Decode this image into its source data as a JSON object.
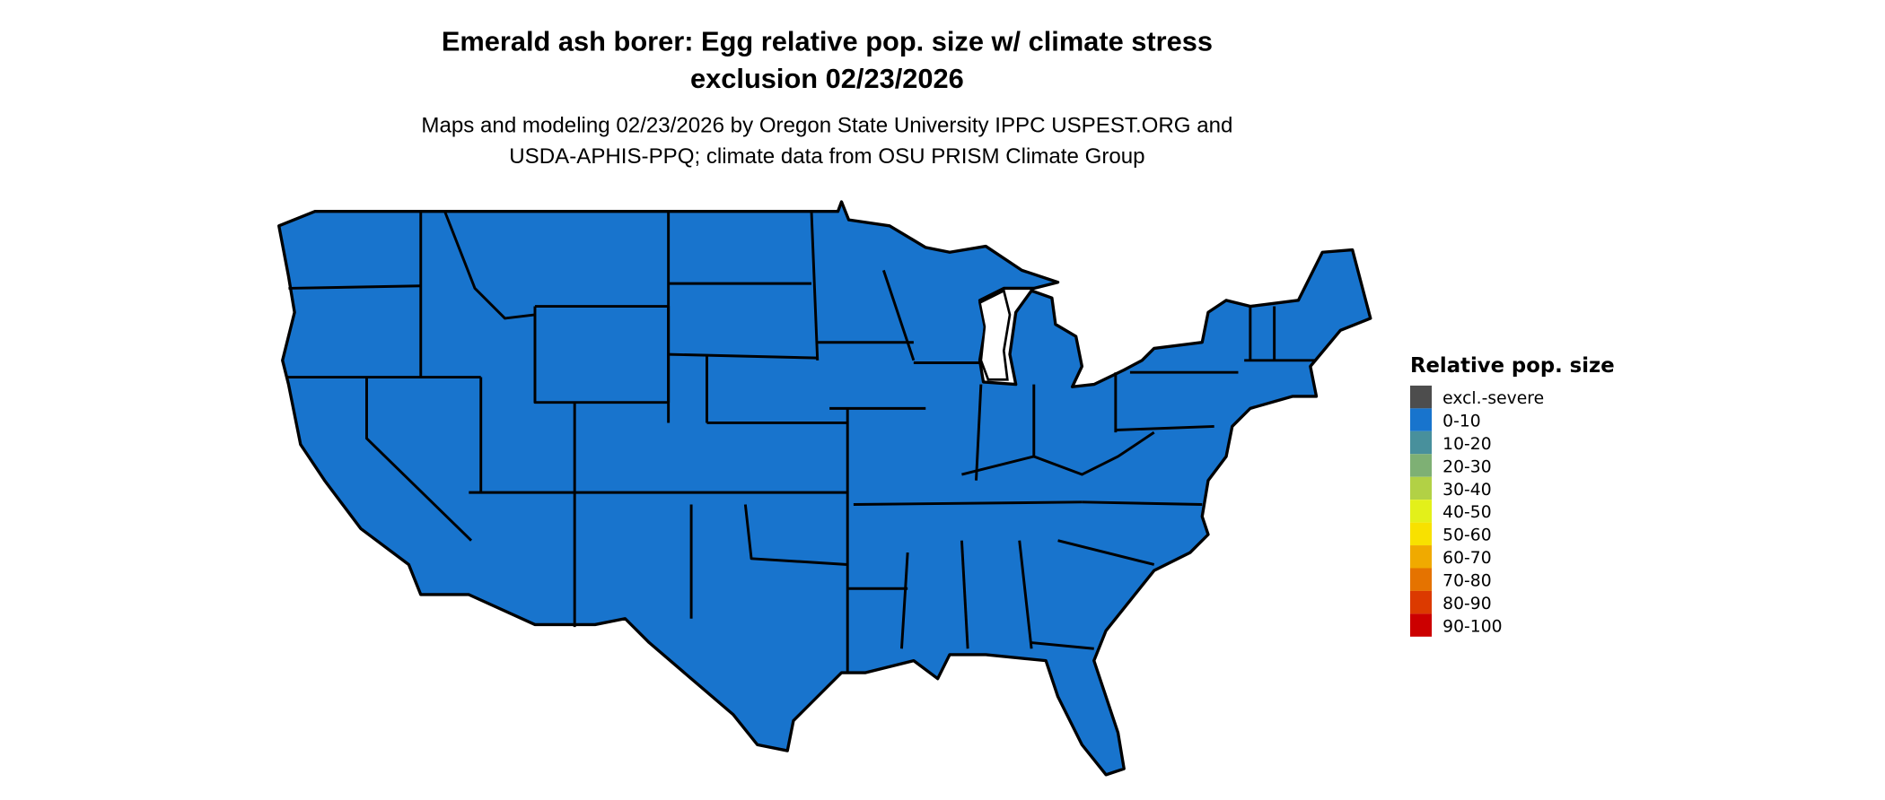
{
  "title_line1": "Emerald ash borer: Egg relative pop. size w/ climate stress",
  "title_line2": "exclusion 02/23/2026",
  "subtitle_line1": "Maps and modeling 02/23/2026 by Oregon State University IPPC USPEST.ORG and",
  "subtitle_line2": "USDA-APHIS-PPQ; climate data from OSU PRISM Climate Group",
  "map": {
    "region": "Contiguous United States",
    "dominant_class": "0-10",
    "fill_color": "#1874CD",
    "border_color": "#000000"
  },
  "legend": {
    "title": "Relative pop. size",
    "items": [
      {
        "label": "excl.-severe",
        "color": "#4D4D4D"
      },
      {
        "label": "0-10",
        "color": "#1874CD"
      },
      {
        "label": "10-20",
        "color": "#48909C"
      },
      {
        "label": "20-30",
        "color": "#7EB074"
      },
      {
        "label": "30-40",
        "color": "#B2D145"
      },
      {
        "label": "40-50",
        "color": "#E3F01A"
      },
      {
        "label": "50-60",
        "color": "#F8E100"
      },
      {
        "label": "60-70",
        "color": "#F0AA00"
      },
      {
        "label": "70-80",
        "color": "#E57300"
      },
      {
        "label": "80-90",
        "color": "#DC3A00"
      },
      {
        "label": "90-100",
        "color": "#CC0000"
      }
    ]
  }
}
